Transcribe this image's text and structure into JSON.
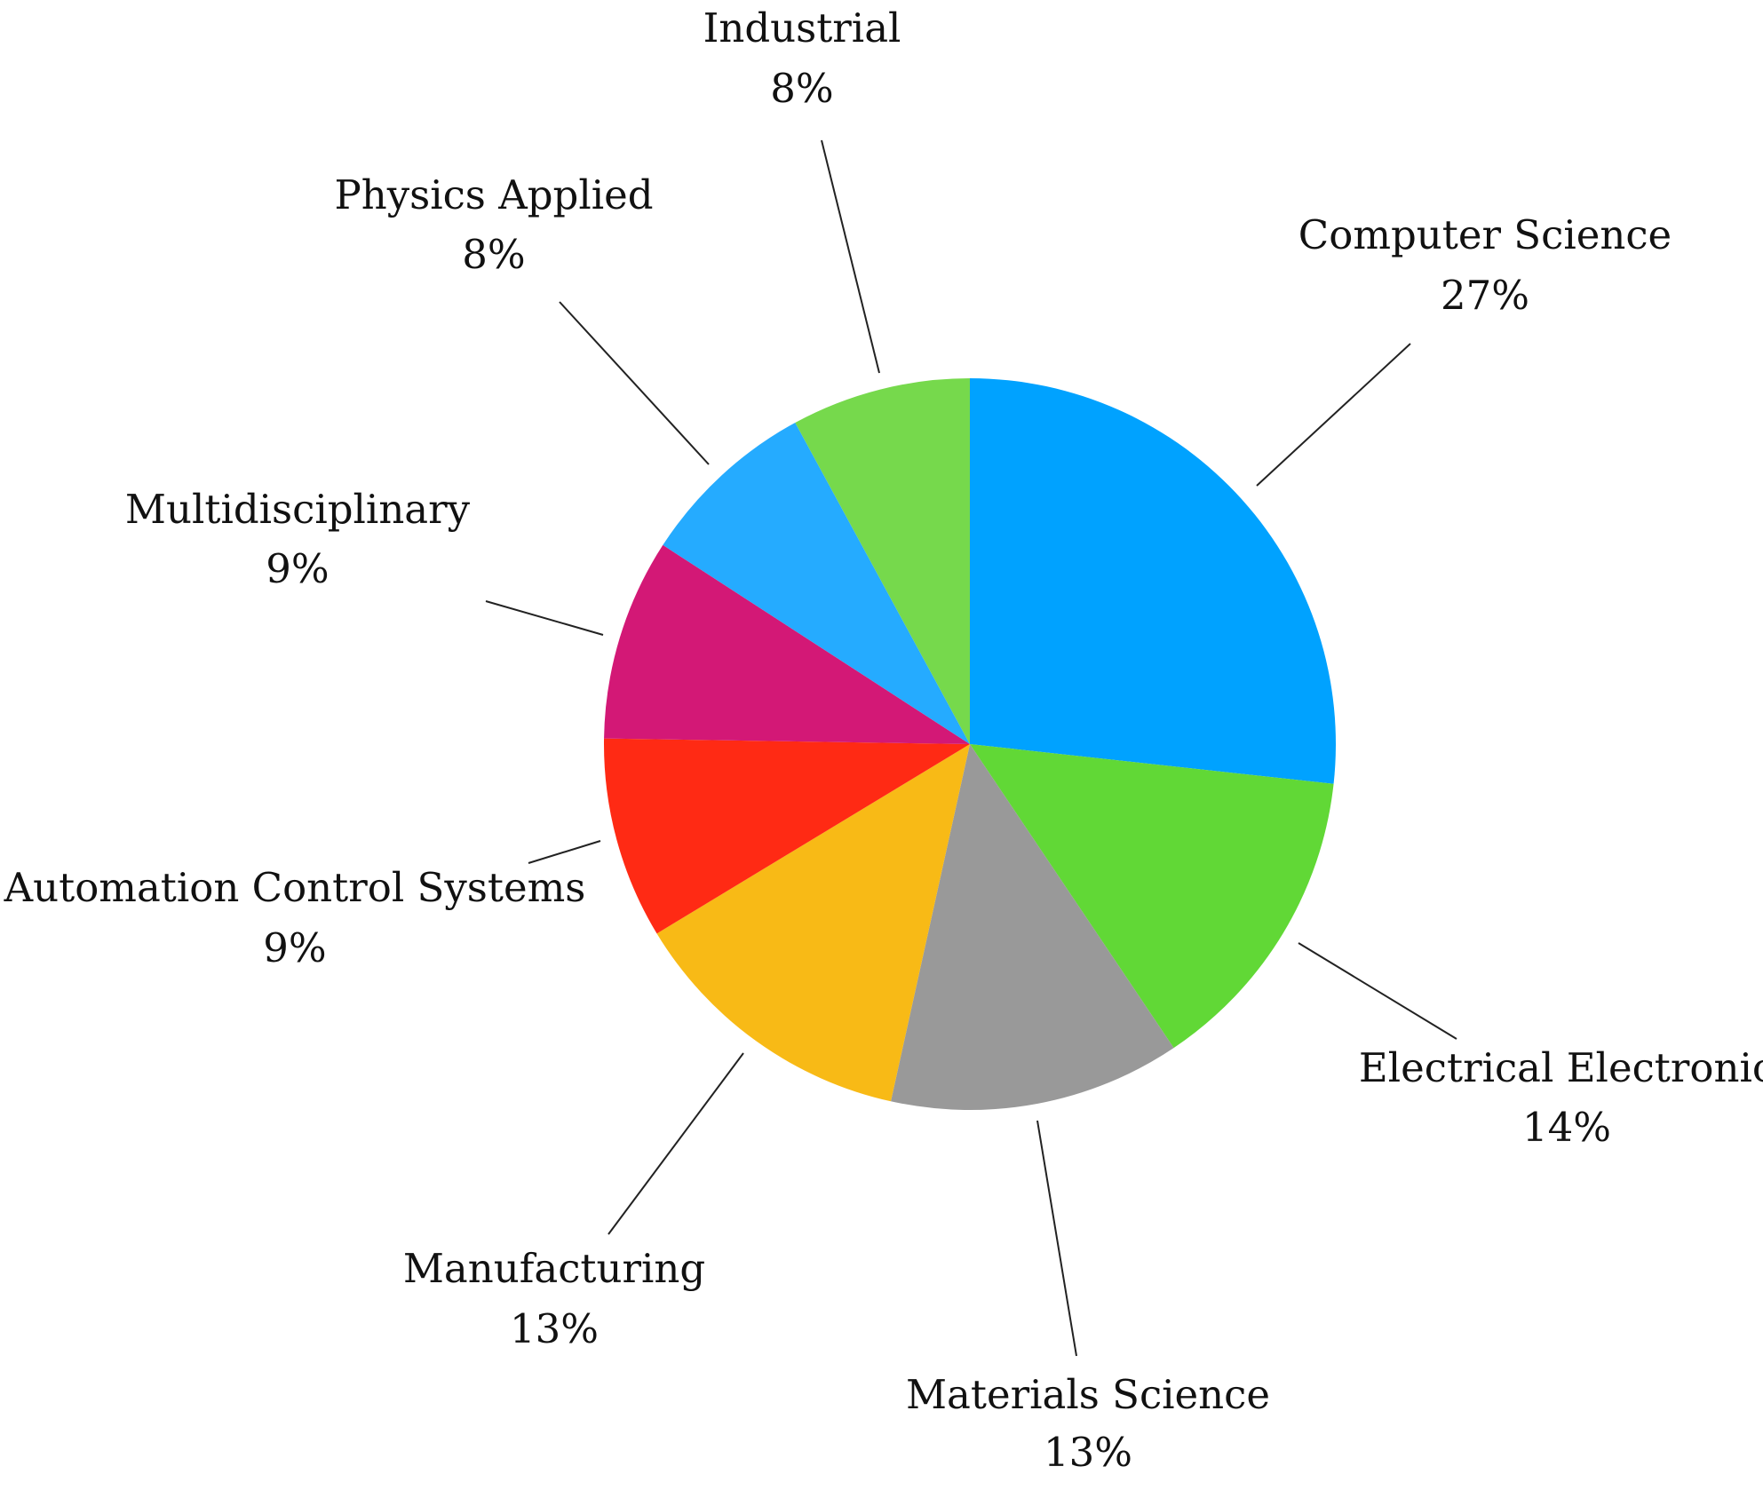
{
  "chart_data": {
    "type": "pie",
    "start": "top",
    "direction": "clockwise",
    "slices": [
      {
        "label": "Computer Science",
        "value": 27,
        "value_label": "27%",
        "color": "#00A2FF"
      },
      {
        "label": "Electrical Electronic",
        "value": 14,
        "value_label": "14%",
        "color": "#61D836"
      },
      {
        "label": "Materials Science",
        "value": 13,
        "value_label": "13%",
        "color": "#999999"
      },
      {
        "label": "Manufacturing",
        "value": 13,
        "value_label": "13%",
        "color": "#F8BA16"
      },
      {
        "label": "Automation Control Systems",
        "value": 9,
        "value_label": "9%",
        "color": "#FF2A14"
      },
      {
        "label": "Multidisciplinary",
        "value": 9,
        "value_label": "9%",
        "color": "#D31876"
      },
      {
        "label": "Physics Applied",
        "value": 8,
        "value_label": "8%",
        "color": "#25ABFF"
      },
      {
        "label": "Industrial",
        "value": 8,
        "value_label": "8%",
        "color": "#76D94C"
      }
    ]
  }
}
